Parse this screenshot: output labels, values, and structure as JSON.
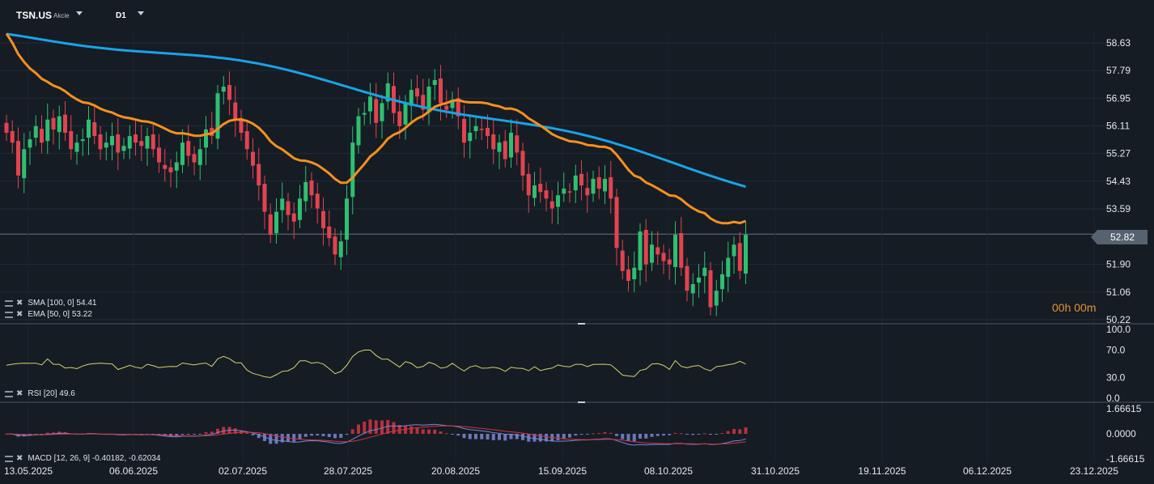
{
  "header": {
    "symbol": "TSN.US",
    "instrument_type": "Akcie",
    "timeframe": "D1"
  },
  "timer": "00h 00m",
  "last_price_tag": "52.82",
  "indicators": {
    "sma": "SMA [100, 0] 54.41",
    "ema": "EMA [50, 0] 53.22",
    "rsi": "RSI [20] 49.6",
    "macd": "MACD [12, 26, 9] -0.40182, -0.62034"
  },
  "colors": {
    "background": "#151c24",
    "up": "#2fbf71",
    "down": "#e2434f",
    "sma": "#1aa3e8",
    "ema": "#f5901e",
    "rsi": "#d7d26b",
    "macd": "#7a86d6",
    "signal": "#d6343f"
  },
  "chart_data": {
    "type": "candlestick",
    "price_axis": {
      "ticks": [
        "58.63",
        "57.79",
        "56.95",
        "56.11",
        "55.27",
        "54.43",
        "53.59",
        "52.82",
        "51.90",
        "51.06",
        "50.22"
      ],
      "range": [
        50.22,
        58.63
      ]
    },
    "last_price": 52.82,
    "x_axis_labels": [
      "13.05.2025",
      "06.06.2025",
      "02.07.2025",
      "28.07.2025",
      "20.08.2025",
      "15.09.2025",
      "08.10.2025",
      "31.10.2025",
      "19.11.2025",
      "06.12.2025",
      "23.12.2025"
    ],
    "closes": [
      55.9,
      55.6,
      54.6,
      55.4,
      55.7,
      56.1,
      55.6,
      56.3,
      56.0,
      56.4,
      55.9,
      55.4,
      55.6,
      55.7,
      56.3,
      55.8,
      55.4,
      55.6,
      55.8,
      55.3,
      55.5,
      55.8,
      55.6,
      55.5,
      55.8,
      55.4,
      55.0,
      54.8,
      54.7,
      55.0,
      55.6,
      55.2,
      55.0,
      55.4,
      56.0,
      55.8,
      57.1,
      57.3,
      56.9,
      56.3,
      55.9,
      55.4,
      54.9,
      54.3,
      53.5,
      52.8,
      53.5,
      53.9,
      53.4,
      53.2,
      53.9,
      54.4,
      54.0,
      53.6,
      53.0,
      52.7,
      52.2,
      52.6,
      53.9,
      55.6,
      56.4,
      56.5,
      57.0,
      56.2,
      56.8,
      57.4,
      56.5,
      56.1,
      56.8,
      57.2,
      57.0,
      56.6,
      57.3,
      57.5,
      56.8,
      56.6,
      56.9,
      56.4,
      55.6,
      55.9,
      56.1,
      56.0,
      55.8,
      55.4,
      55.6,
      55.1,
      55.9,
      55.3,
      54.6,
      54.0,
      54.3,
      54.1,
      53.9,
      53.6,
      54.0,
      54.2,
      54.1,
      54.6,
      54.3,
      54.0,
      54.5,
      54.2,
      54.5,
      53.9,
      52.4,
      51.7,
      51.4,
      51.8,
      52.9,
      51.9,
      52.5,
      52.2,
      52.0,
      51.9,
      52.8,
      51.8,
      51.1,
      51.3,
      51.5,
      51.8,
      50.6,
      51.1,
      51.6,
      52.1,
      52.5,
      51.7,
      52.8
    ],
    "sma": {
      "name": "SMA [100, 0]",
      "last": 54.41
    },
    "ema": {
      "name": "EMA [50, 0]",
      "last": 53.22
    },
    "rsi": {
      "name": "RSI [20]",
      "last": 49.6,
      "ticks": [
        "100.0",
        "70.0",
        "30.0",
        "0.0"
      ]
    },
    "macd": {
      "name": "MACD [12, 26, 9]",
      "macd": -0.40182,
      "signal": -0.62034,
      "ticks": [
        "1.66615",
        "0.0000",
        "-1.66615"
      ]
    }
  }
}
